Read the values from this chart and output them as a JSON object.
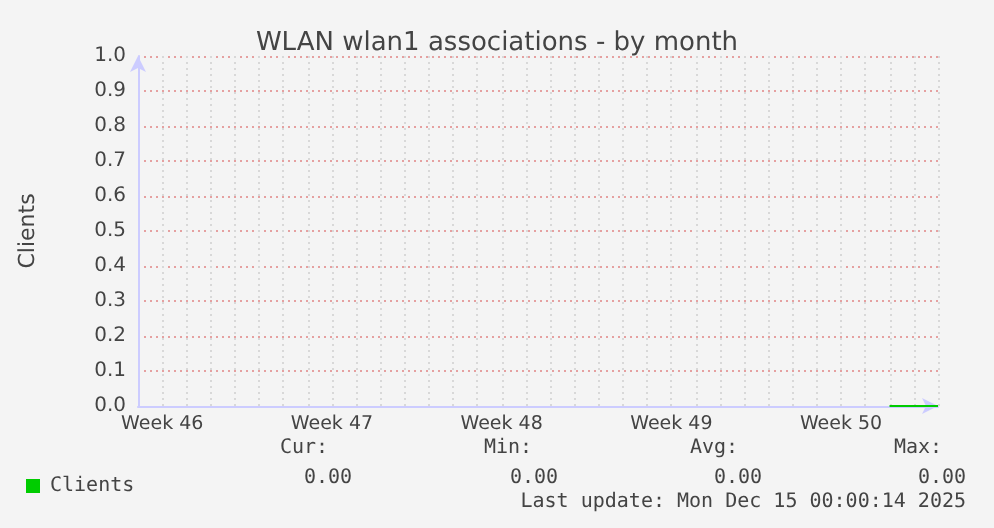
{
  "chart_data": {
    "type": "line",
    "title": "WLAN wlan1 associations - by month",
    "ylabel": "Clients",
    "categories": [
      null,
      "Week 46",
      null,
      null,
      null,
      null,
      null,
      null,
      "Week 47",
      null,
      null,
      null,
      null,
      null,
      null,
      "Week 48",
      null,
      null,
      null,
      null,
      null,
      null,
      "Week 49",
      null,
      null,
      null,
      null,
      null,
      null,
      "Week 50",
      null,
      null,
      null,
      null
    ],
    "ylim": [
      0,
      1
    ],
    "yticks": [
      {
        "value": 0,
        "label": "0.0"
      },
      0.1,
      0.2,
      0.3,
      0.4,
      0.5,
      0.6,
      0.7,
      0.8,
      0.9,
      {
        "value": 1,
        "label": "1.0"
      }
    ],
    "series": [
      {
        "name": "Clients",
        "color": "#00cc00",
        "values": [
          null,
          null,
          null,
          null,
          null,
          null,
          null,
          null,
          null,
          null,
          null,
          null,
          null,
          null,
          null,
          null,
          null,
          null,
          null,
          null,
          null,
          null,
          null,
          null,
          null,
          null,
          null,
          null,
          null,
          null,
          null,
          0,
          0,
          0
        ]
      }
    ],
    "grid": true,
    "legend": "bottom left",
    "marker": "none",
    "line_style": "solid",
    "annotations": [
      "Cur:",
      "0.00",
      "Min:",
      "0.00",
      "Avg:",
      "0.00",
      "Max:",
      "0.00",
      "Last update: Mon Dec 15 00:00:14 2025"
    ]
  }
}
